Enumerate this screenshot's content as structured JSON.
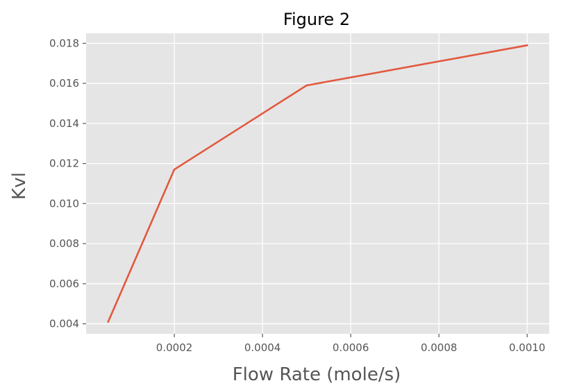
{
  "chart_data": {
    "type": "line",
    "title": "Figure 2",
    "xlabel": "Flow Rate (mole/s)",
    "ylabel": "Kvl",
    "xlim": [
      0.0,
      0.00105
    ],
    "ylim": [
      0.0035,
      0.0185
    ],
    "xticks": [
      0.0002,
      0.0004,
      0.0006,
      0.0008,
      0.001
    ],
    "xtick_labels": [
      "0.0002",
      "0.0004",
      "0.0006",
      "0.0008",
      "0.0010"
    ],
    "yticks": [
      0.004,
      0.006,
      0.008,
      0.01,
      0.012,
      0.014,
      0.016,
      0.018
    ],
    "ytick_labels": [
      "0.004",
      "0.006",
      "0.008",
      "0.010",
      "0.012",
      "0.014",
      "0.016",
      "0.018"
    ],
    "grid": true,
    "series": [
      {
        "x": [
          5e-05,
          0.0002,
          0.0005,
          0.001
        ],
        "y": [
          0.0041,
          0.0117,
          0.0159,
          0.0179
        ]
      }
    ],
    "colors": {
      "plot_background": "#e5e5e5",
      "grid": "#ffffff",
      "line": "#e2583e",
      "text": "#555555"
    }
  }
}
